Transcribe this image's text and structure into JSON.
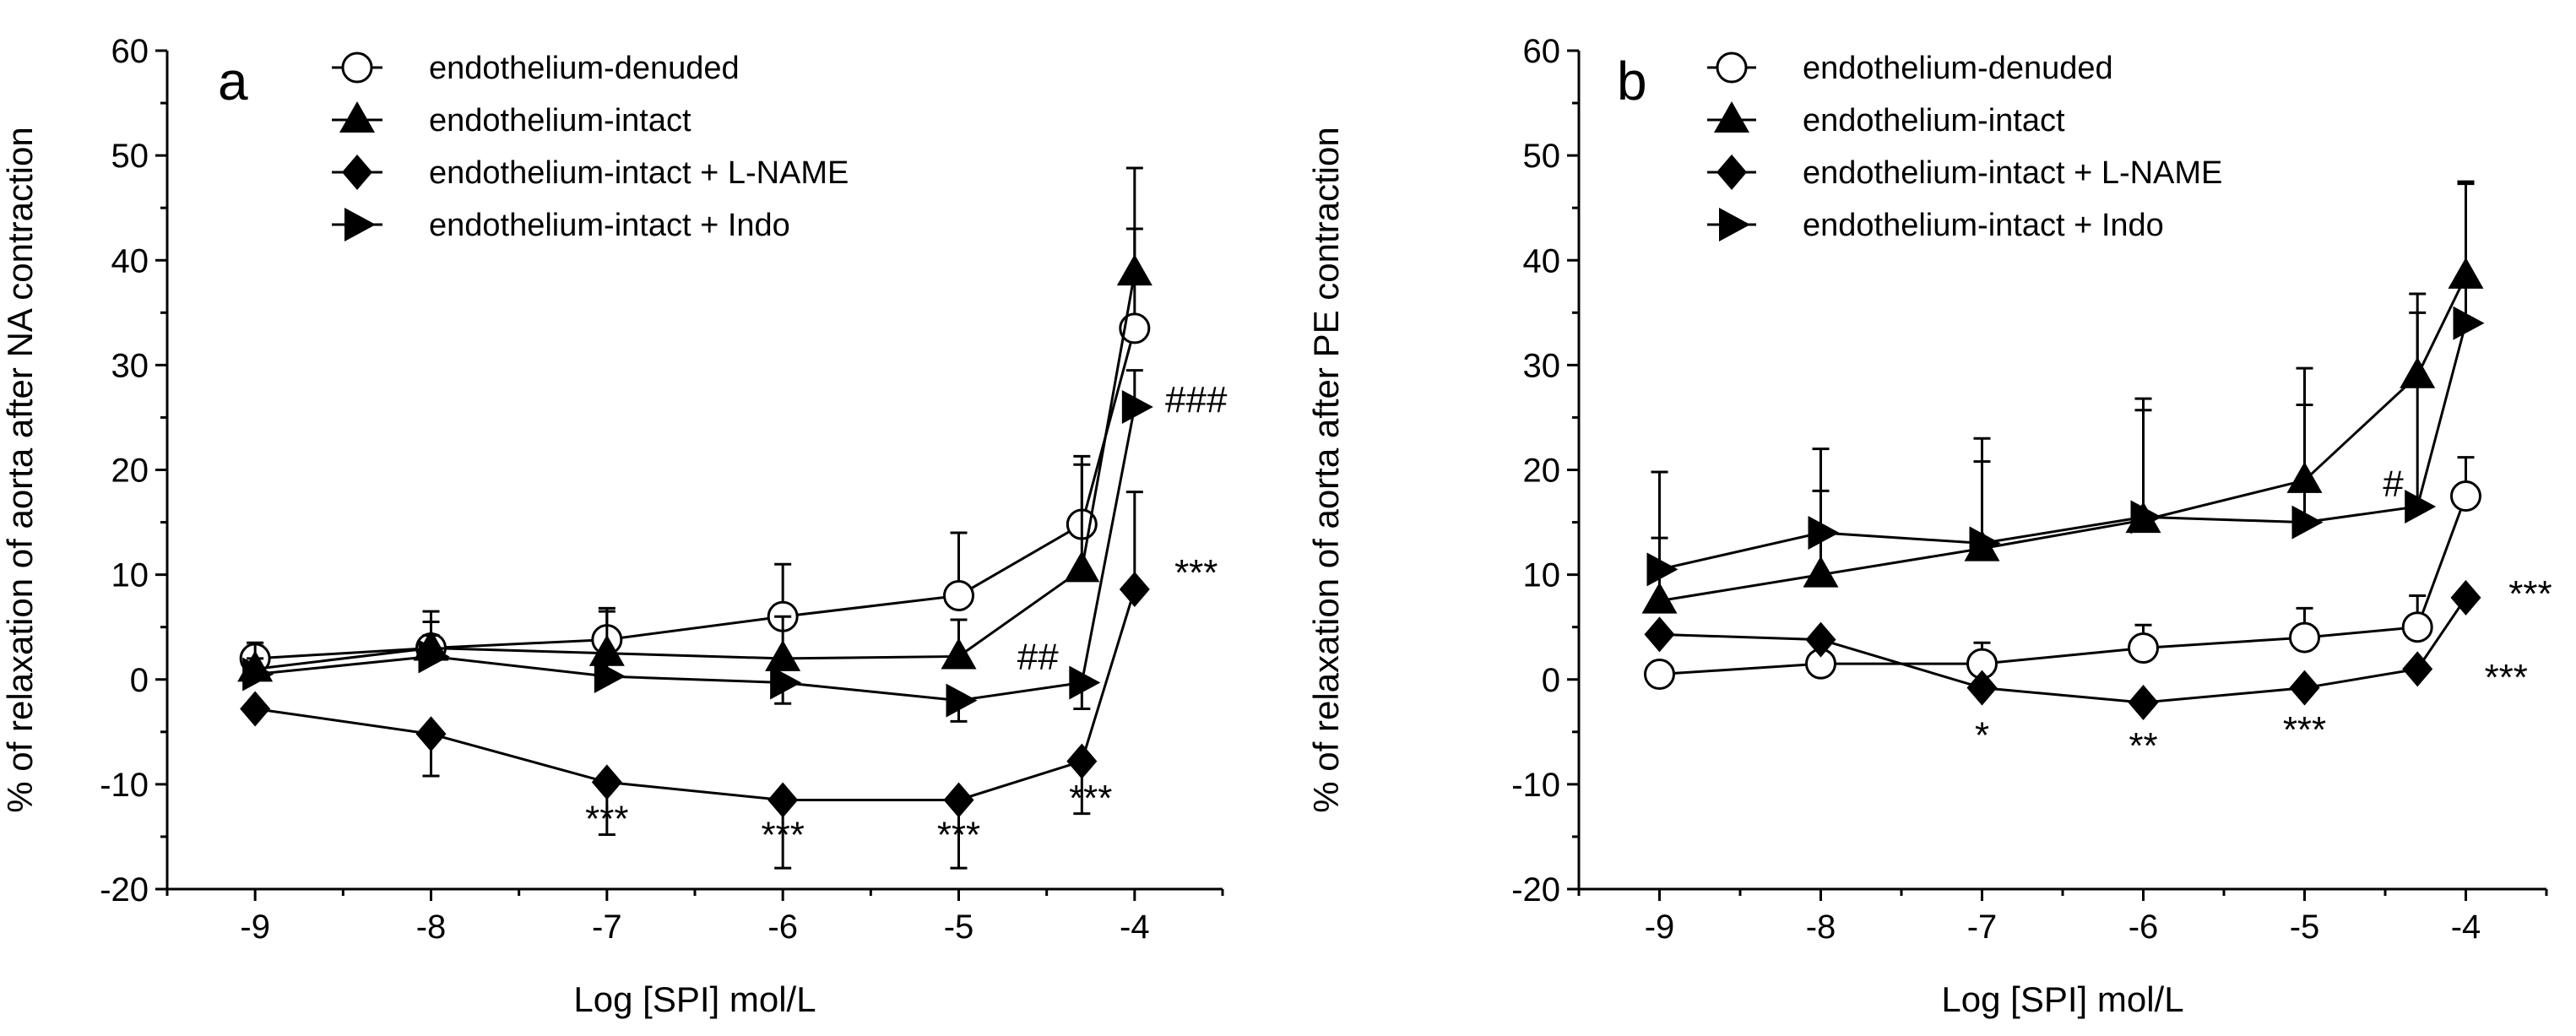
{
  "chart_data": [
    {
      "type": "line",
      "panel_label": "a",
      "xlabel": "Log [SPI] mol/L",
      "ylabel": "% of relaxation of aorta after NA contraction",
      "xlim": [
        -9.5,
        -3.5
      ],
      "ylim": [
        -20,
        60
      ],
      "xticks": [
        -9,
        -8,
        -7,
        -6,
        -5,
        -4
      ],
      "xtick_labels": [
        "-9",
        "-8",
        "-7",
        "-6",
        "-5",
        "-4"
      ],
      "yticks": [
        -20,
        -10,
        0,
        10,
        20,
        30,
        40,
        50,
        60
      ],
      "ytick_labels": [
        "-20",
        "-10",
        "0",
        "10",
        "20",
        "30",
        "40",
        "50",
        "60"
      ],
      "legend_position": "top",
      "series": [
        {
          "name": "endothelium-denuded",
          "marker": "circle-open",
          "x": [
            -9,
            -8,
            -7,
            -6,
            -5,
            -4.3,
            -4
          ],
          "y": [
            2,
            3,
            3.8,
            6,
            8,
            14.8,
            33.5
          ],
          "err": [
            1.2,
            2.5,
            3,
            5,
            6,
            6.5,
            9.5
          ]
        },
        {
          "name": "endothelium-intact",
          "marker": "triangle-up",
          "x": [
            -9,
            -8,
            -7,
            -6,
            -5,
            -4.3,
            -4
          ],
          "y": [
            1,
            3,
            2.5,
            2,
            2.2,
            10.5,
            38.8
          ],
          "err": [
            2.5,
            3.5,
            4,
            4,
            3.5,
            10,
            10
          ]
        },
        {
          "name": "endothelium-intact + L-NAME",
          "marker": "diamond",
          "x": [
            -9,
            -8,
            -7,
            -6,
            -5,
            -4.3,
            -4
          ],
          "y": [
            -2.8,
            -5.2,
            -9.8,
            -11.5,
            -11.5,
            -7.8,
            8.6
          ],
          "err": [
            0,
            4,
            5,
            6.5,
            6.5,
            5,
            9.3
          ]
        },
        {
          "name": "endothelium-intact + Indo",
          "marker": "triangle-right",
          "x": [
            -9,
            -8,
            -7,
            -6,
            -5,
            -4.3,
            -4
          ],
          "y": [
            0.5,
            2.2,
            0.3,
            -0.3,
            -2,
            -0.3,
            26
          ],
          "err": [
            1.5,
            2,
            2,
            2,
            2,
            2.5,
            3.5
          ]
        }
      ],
      "annotations": [
        {
          "text": "***",
          "x": -7,
          "y": -14.5
        },
        {
          "text": "***",
          "x": -6,
          "y": -16
        },
        {
          "text": "***",
          "x": -5,
          "y": -16
        },
        {
          "text": "***",
          "x": -4.25,
          "y": -12.5
        },
        {
          "text": "##",
          "x": -4.55,
          "y": 1
        },
        {
          "text": "###",
          "x": -3.65,
          "y": 25.5
        },
        {
          "text": "***",
          "x": -3.65,
          "y": 9
        }
      ]
    },
    {
      "type": "line",
      "panel_label": "b",
      "xlabel": "Log [SPI] mol/L",
      "ylabel": "% of relaxation of aorta after PE contraction",
      "xlim": [
        -9.5,
        -3.5
      ],
      "ylim": [
        -20,
        60
      ],
      "xticks": [
        -9,
        -8,
        -7,
        -6,
        -5,
        -4
      ],
      "xtick_labels": [
        "-9",
        "-8",
        "-7",
        "-6",
        "-5",
        "-4"
      ],
      "yticks": [
        -20,
        -10,
        0,
        10,
        20,
        30,
        40,
        50,
        60
      ],
      "ytick_labels": [
        "-20",
        "-10",
        "0",
        "10",
        "20",
        "30",
        "40",
        "50",
        "60"
      ],
      "legend_position": "top",
      "series": [
        {
          "name": "endothelium-denuded",
          "marker": "circle-open",
          "x": [
            -9,
            -8,
            -7,
            -6,
            -5,
            -4.3,
            -4
          ],
          "y": [
            0.5,
            1.5,
            1.5,
            3,
            4,
            5,
            17.5
          ],
          "err": [
            0.8,
            0.8,
            2,
            2.2,
            2.8,
            3,
            3.7
          ]
        },
        {
          "name": "endothelium-intact",
          "marker": "triangle-up",
          "x": [
            -9,
            -8,
            -7,
            -6,
            -5,
            -4.3,
            -4
          ],
          "y": [
            7.5,
            10,
            12.5,
            15.2,
            19,
            29,
            38.5
          ],
          "err": [
            6,
            8,
            8.3,
            10.5,
            10.7,
            7.8,
            9
          ]
        },
        {
          "name": "endothelium-intact + L-NAME",
          "marker": "diamond",
          "x": [
            -9,
            -8,
            -7,
            -6,
            -5,
            -4.3,
            -4
          ],
          "y": [
            4.3,
            3.8,
            -0.8,
            -2.2,
            -0.8,
            1,
            7.8
          ],
          "err": [
            0,
            0,
            0,
            0,
            0,
            0,
            0
          ]
        },
        {
          "name": "endothelium-intact + Indo",
          "marker": "triangle-right",
          "x": [
            -9,
            -8,
            -7,
            -6,
            -5,
            -4.3,
            -4
          ],
          "y": [
            10.5,
            14,
            13,
            15.5,
            15,
            16.5,
            34
          ],
          "err": [
            9.3,
            8,
            10,
            11.3,
            11.2,
            18.5,
            13.3
          ]
        }
      ],
      "annotations": [
        {
          "text": "*",
          "x": -7,
          "y": -6.5
        },
        {
          "text": "**",
          "x": -6,
          "y": -7.5
        },
        {
          "text": "***",
          "x": -5,
          "y": -6
        },
        {
          "text": "#",
          "x": -4.45,
          "y": 17.5
        },
        {
          "text": "***",
          "x": -3.6,
          "y": 7
        },
        {
          "text": "***",
          "x": -3.75,
          "y": -1
        }
      ]
    }
  ]
}
